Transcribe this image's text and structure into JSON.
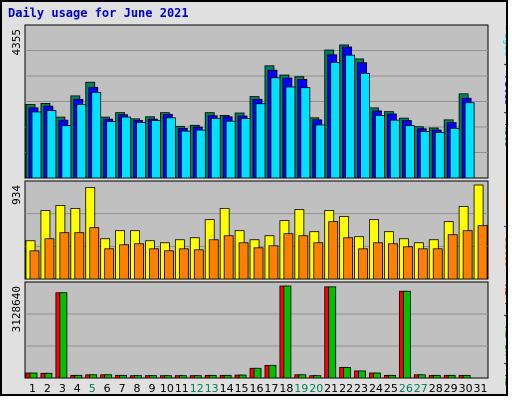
{
  "title": "Daily usage for June 2021",
  "colors": {
    "hits": "#00805c",
    "files": "#0000ff",
    "pages": "#00e0ff",
    "visits": "#ffff00",
    "sites": "#ff8000",
    "kb_f": "#ff0000",
    "kb_in": "#00c000",
    "kb_out": "#00c000"
  },
  "chart_data": [
    {
      "type": "bar",
      "panel": "top",
      "ymax_label": "4355",
      "ylim": [
        0,
        4355
      ],
      "legend": [
        "Pages",
        "/",
        "Files",
        "/",
        "Hits"
      ],
      "categories": [
        "1",
        "2",
        "3",
        "4",
        "5",
        "6",
        "7",
        "8",
        "9",
        "10",
        "11",
        "12",
        "13",
        "14",
        "15",
        "16",
        "17",
        "18",
        "19",
        "20",
        "21",
        "22",
        "23",
        "24",
        "25",
        "26",
        "27",
        "28",
        "29",
        "30",
        "31"
      ],
      "highlighted_categories": [
        "5",
        "12",
        "13",
        "19",
        "20",
        "26",
        "27"
      ],
      "series": [
        {
          "name": "Hits",
          "values": [
            2150,
            2180,
            1780,
            2400,
            2800,
            1780,
            1910,
            1730,
            1790,
            1910,
            1510,
            1540,
            1910,
            1830,
            1900,
            2380,
            3280,
            3010,
            2960,
            1760,
            3740,
            3890,
            3480,
            2050,
            1940,
            1750,
            1500,
            1460,
            1700,
            2460,
            0
          ]
        },
        {
          "name": "Files",
          "values": [
            2050,
            2100,
            1690,
            2300,
            2650,
            1720,
            1850,
            1680,
            1720,
            1860,
            1450,
            1490,
            1820,
            1790,
            1810,
            2300,
            3150,
            2920,
            2880,
            1700,
            3600,
            3830,
            3370,
            1960,
            1870,
            1680,
            1440,
            1400,
            1620,
            2330,
            0
          ]
        },
        {
          "name": "Pages",
          "values": [
            1930,
            1970,
            1530,
            2150,
            2500,
            1650,
            1780,
            1620,
            1680,
            1760,
            1370,
            1400,
            1740,
            1660,
            1740,
            2170,
            2930,
            2660,
            2640,
            1550,
            3380,
            3590,
            3060,
            1830,
            1690,
            1530,
            1360,
            1330,
            1450,
            2200,
            0
          ]
        }
      ]
    },
    {
      "type": "bar",
      "panel": "middle",
      "ymax_label": "934",
      "ylim": [
        0,
        934
      ],
      "legend": [
        "Visits",
        "/",
        "Sites"
      ],
      "series": [
        {
          "name": "Visits",
          "values": [
            380,
            680,
            730,
            700,
            910,
            400,
            480,
            480,
            380,
            360,
            390,
            410,
            590,
            700,
            480,
            390,
            430,
            580,
            690,
            470,
            680,
            620,
            420,
            590,
            470,
            400,
            360,
            390,
            570,
            720,
            950
          ]
        },
        {
          "name": "Sites",
          "values": [
            280,
            400,
            460,
            460,
            510,
            300,
            340,
            350,
            300,
            280,
            300,
            290,
            390,
            430,
            360,
            310,
            330,
            450,
            430,
            360,
            570,
            410,
            300,
            360,
            350,
            320,
            300,
            300,
            440,
            480,
            530
          ]
        }
      ]
    },
    {
      "type": "bar",
      "panel": "bottom",
      "ymax_label": "3128640",
      "ylim": [
        0,
        3128640
      ],
      "legend": [
        "KB F",
        "/",
        "KB In",
        "/",
        "KB Out"
      ],
      "series": [
        {
          "name": "KB F",
          "values": [
            170000,
            160000,
            2900000,
            90000,
            110000,
            110000,
            90000,
            80000,
            80000,
            80000,
            80000,
            80000,
            90000,
            90000,
            100000,
            330000,
            430000,
            3200000,
            110000,
            80000,
            3100000,
            360000,
            240000,
            170000,
            90000,
            2950000,
            110000,
            90000,
            90000,
            90000,
            0
          ]
        },
        {
          "name": "KB In",
          "values": [
            170000,
            160000,
            2900000,
            90000,
            110000,
            110000,
            90000,
            80000,
            80000,
            80000,
            80000,
            80000,
            90000,
            90000,
            100000,
            330000,
            430000,
            3200000,
            110000,
            80000,
            3100000,
            360000,
            240000,
            170000,
            90000,
            2950000,
            110000,
            90000,
            90000,
            90000,
            0
          ]
        }
      ]
    }
  ]
}
